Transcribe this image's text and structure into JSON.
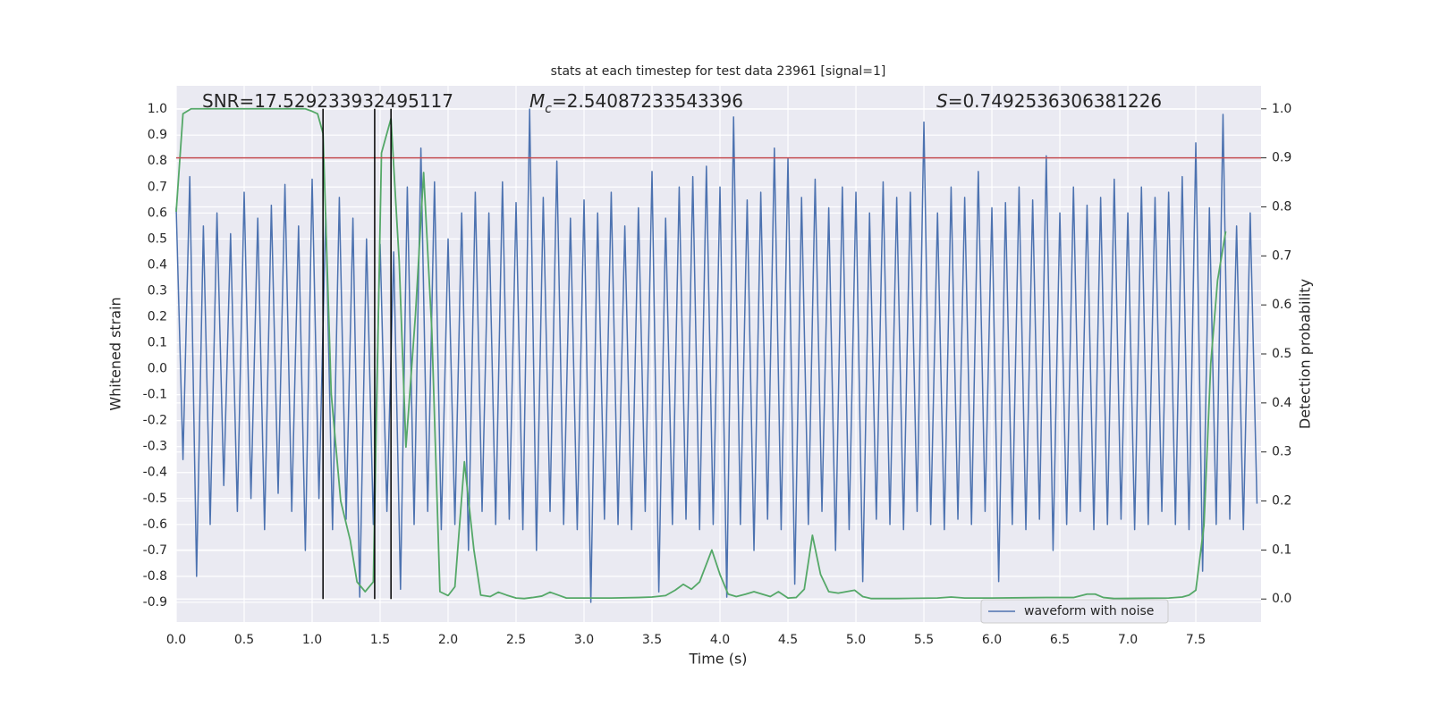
{
  "chart_data": {
    "type": "line",
    "title": "stats at each timestep for test data 23961 [signal=1]",
    "xlabel": "Time (s)",
    "ylabel": "Whitened strain",
    "y2label": "Detection probability",
    "annotations": [
      {
        "text": "SNR=17.529233932495117"
      },
      {
        "symbol": "M",
        "sub": "c",
        "text": "=2.54087233543396"
      },
      {
        "symbol": "S",
        "text": "=0.7492536306381226"
      }
    ],
    "xlim": [
      0,
      7.98
    ],
    "ylim": [
      -0.976,
      1.09
    ],
    "y2lim": [
      -0.047,
      1.047
    ],
    "xticks": [
      {
        "value": 0,
        "label": "0.0"
      },
      0.5,
      {
        "value": 1,
        "label": "1.0"
      },
      1.5,
      {
        "value": 2,
        "label": "2.0"
      },
      2.5,
      {
        "value": 3,
        "label": "3.0"
      },
      3.5,
      {
        "value": 4,
        "label": "4.0"
      },
      4.5,
      {
        "value": 5,
        "label": "5.0"
      },
      5.5,
      {
        "value": 6,
        "label": "6.0"
      },
      6.5,
      {
        "value": 7,
        "label": "7.0"
      },
      7.5
    ],
    "yticks": [
      -0.9,
      -0.8,
      -0.7,
      -0.6,
      -0.5,
      -0.4,
      -0.3,
      -0.2,
      -0.1,
      {
        "value": 0,
        "label": "0.0"
      },
      0.1,
      0.2,
      0.3,
      0.4,
      0.5,
      0.6,
      0.7,
      0.8,
      0.9,
      {
        "value": 1,
        "label": "1.0"
      }
    ],
    "y2ticks": [
      {
        "value": 0,
        "label": "0.0"
      },
      0.1,
      0.2,
      0.3,
      0.4,
      0.5,
      0.6,
      0.7,
      0.8,
      0.9,
      {
        "value": 1,
        "label": "1.0"
      }
    ],
    "grid": true,
    "legend": "lower right",
    "series": [
      {
        "name": "waveform with noise",
        "color": "#4c72b0",
        "x": [
          0,
          0.05,
          0.1,
          0.15,
          0.2,
          0.25,
          0.3,
          0.35,
          0.4,
          0.45,
          0.5,
          0.55,
          0.6,
          0.65,
          0.7,
          0.75,
          0.8,
          0.85,
          0.9,
          0.95,
          1,
          1.05,
          1.1,
          1.15,
          1.2,
          1.25,
          1.3,
          1.35,
          1.4,
          1.45,
          1.5,
          1.55,
          1.6,
          1.65,
          1.7,
          1.75,
          1.8,
          1.85,
          1.9,
          1.95,
          2,
          2.05,
          2.1,
          2.15,
          2.2,
          2.25,
          2.3,
          2.35,
          2.4,
          2.45,
          2.5,
          2.55,
          2.6,
          2.65,
          2.7,
          2.75,
          2.8,
          2.85,
          2.9,
          2.95,
          3,
          3.05,
          3.1,
          3.15,
          3.2,
          3.25,
          3.3,
          3.35,
          3.4,
          3.45,
          3.5,
          3.55,
          3.6,
          3.65,
          3.7,
          3.75,
          3.8,
          3.85,
          3.9,
          3.95,
          4,
          4.05,
          4.1,
          4.15,
          4.2,
          4.25,
          4.3,
          4.35,
          4.4,
          4.45,
          4.5,
          4.55,
          4.6,
          4.65,
          4.7,
          4.75,
          4.8,
          4.85,
          4.9,
          4.95,
          5,
          5.05,
          5.1,
          5.15,
          5.2,
          5.25,
          5.3,
          5.35,
          5.4,
          5.45,
          5.5,
          5.55,
          5.6,
          5.65,
          5.7,
          5.75,
          5.8,
          5.85,
          5.9,
          5.95,
          6,
          6.05,
          6.1,
          6.15,
          6.2,
          6.25,
          6.3,
          6.35,
          6.4,
          6.45,
          6.5,
          6.55,
          6.6,
          6.65,
          6.7,
          6.75,
          6.8,
          6.85,
          6.9,
          6.95,
          7,
          7.05,
          7.1,
          7.15,
          7.2,
          7.25,
          7.3,
          7.35,
          7.4,
          7.45,
          7.5,
          7.55,
          7.6,
          7.65,
          7.7,
          7.75,
          7.8,
          7.85,
          7.9,
          7.95
        ],
        "values": [
          0.62,
          -0.35,
          0.74,
          -0.8,
          0.55,
          -0.6,
          0.6,
          -0.45,
          0.52,
          -0.55,
          0.68,
          -0.5,
          0.58,
          -0.62,
          0.63,
          -0.48,
          0.71,
          -0.55,
          0.55,
          -0.7,
          0.73,
          -0.5,
          0.6,
          -0.62,
          0.66,
          -0.58,
          0.58,
          -0.88,
          0.5,
          -0.6,
          0.48,
          -0.55,
          0.45,
          -0.85,
          0.7,
          -0.6,
          0.85,
          -0.55,
          0.72,
          -0.62,
          0.5,
          -0.6,
          0.6,
          -0.7,
          0.68,
          -0.55,
          0.6,
          -0.6,
          0.72,
          -0.58,
          0.64,
          -0.62,
          1.0,
          -0.7,
          0.66,
          -0.55,
          0.8,
          -0.6,
          0.58,
          -0.62,
          0.65,
          -0.9,
          0.6,
          -0.58,
          0.68,
          -0.6,
          0.55,
          -0.62,
          0.62,
          -0.55,
          0.76,
          -0.86,
          0.58,
          -0.6,
          0.7,
          -0.58,
          0.74,
          -0.62,
          0.78,
          -0.6,
          0.7,
          -0.88,
          0.97,
          -0.6,
          0.65,
          -0.7,
          0.68,
          -0.58,
          0.85,
          -0.62,
          0.81,
          -0.83,
          0.66,
          -0.6,
          0.73,
          -0.55,
          0.62,
          -0.7,
          0.7,
          -0.62,
          0.68,
          -0.82,
          0.6,
          -0.58,
          0.72,
          -0.6,
          0.66,
          -0.62,
          0.68,
          -0.55,
          0.95,
          -0.6,
          0.6,
          -0.62,
          0.7,
          -0.58,
          0.66,
          -0.6,
          0.76,
          -0.55,
          0.62,
          -0.82,
          0.64,
          -0.6,
          0.7,
          -0.62,
          0.65,
          -0.58,
          0.82,
          -0.7,
          0.6,
          -0.6,
          0.7,
          -0.55,
          0.63,
          -0.62,
          0.66,
          -0.6,
          0.73,
          -0.58,
          0.6,
          -0.62,
          0.7,
          -0.6,
          0.66,
          -0.55,
          0.68,
          -0.6,
          0.74,
          -0.62,
          0.87,
          -0.78,
          0.62,
          -0.6,
          0.98,
          -0.58,
          0.55,
          -0.62,
          0.6,
          -0.52
        ]
      },
      {
        "color": "#55a868",
        "axis": "y2",
        "x": [
          0,
          0.05,
          0.11,
          0.5,
          0.95,
          1.0,
          1.04,
          1.08,
          1.14,
          1.21,
          1.28,
          1.33,
          1.39,
          1.45,
          1.51,
          1.58,
          1.64,
          1.69,
          1.76,
          1.82,
          1.88,
          1.94,
          2.0,
          2.05,
          2.12,
          2.19,
          2.24,
          2.31,
          2.37,
          2.43,
          2.5,
          2.56,
          2.62,
          2.69,
          2.75,
          2.81,
          2.87,
          2.94,
          3.0,
          3.2,
          3.4,
          3.5,
          3.6,
          3.67,
          3.73,
          3.79,
          3.85,
          3.94,
          4.0,
          4.06,
          4.12,
          4.19,
          4.25,
          4.31,
          4.37,
          4.43,
          4.5,
          4.56,
          4.62,
          4.68,
          4.74,
          4.8,
          4.87,
          4.93,
          4.99,
          5.05,
          5.11,
          5.3,
          5.6,
          5.7,
          5.8,
          6.0,
          6.4,
          6.6,
          6.7,
          6.76,
          6.82,
          6.9,
          7.3,
          7.4,
          7.45,
          7.5,
          7.56,
          7.61,
          7.66,
          7.72
        ],
        "values": [
          0.79,
          0.99,
          1.0,
          1.0,
          1.0,
          0.995,
          0.99,
          0.95,
          0.42,
          0.2,
          0.12,
          0.035,
          0.015,
          0.035,
          0.91,
          0.98,
          0.69,
          0.31,
          0.58,
          0.87,
          0.55,
          0.015,
          0.007,
          0.025,
          0.28,
          0.1,
          0.008,
          0.005,
          0.014,
          0.008,
          0.002,
          0.001,
          0.003,
          0.006,
          0.014,
          0.008,
          0.002,
          0.002,
          0.002,
          0.002,
          0.003,
          0.004,
          0.007,
          0.018,
          0.03,
          0.02,
          0.035,
          0.1,
          0.05,
          0.01,
          0.005,
          0.01,
          0.015,
          0.01,
          0.005,
          0.015,
          0.002,
          0.003,
          0.02,
          0.13,
          0.05,
          0.015,
          0.012,
          0.015,
          0.018,
          0.005,
          0.001,
          0.001,
          0.002,
          0.004,
          0.002,
          0.002,
          0.003,
          0.003,
          0.01,
          0.01,
          0.003,
          0.001,
          0.002,
          0.004,
          0.008,
          0.018,
          0.15,
          0.48,
          0.65,
          0.75
        ]
      }
    ],
    "hlines": [
      {
        "y": 0.9,
        "axis": "y2",
        "color": "#c44e52"
      }
    ],
    "vlines": {
      "x": [
        1.08,
        1.46,
        1.58
      ],
      "from": 0,
      "to": 1,
      "axis": "y2",
      "color": "#000000"
    }
  }
}
